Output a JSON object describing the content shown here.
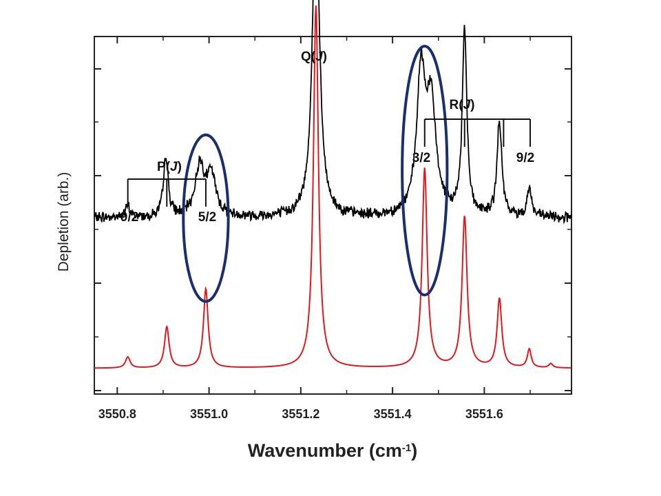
{
  "chart_data": {
    "type": "line",
    "xlabel_main": "Wavenumber (cm",
    "xlabel_sup": "-1",
    "xlabel_close": ")",
    "ylabel": "Depletion (arb.)",
    "xlim": [
      3550.75,
      3551.79
    ],
    "ylim": [
      0,
      1
    ],
    "x_ticks": [
      "3550.8",
      "3551.0",
      "3551.2",
      "3551.4",
      "3551.6"
    ],
    "grid": false,
    "colors": {
      "experiment": "#000000",
      "simulation": "#e0181b",
      "ellipse": "#1a2f6b"
    },
    "series": [
      {
        "key": "experiment",
        "baseline": 0.493,
        "noise": 0.012,
        "peaks": [
          {
            "x": 3550.823,
            "a": 0.03,
            "w": 0.006
          },
          {
            "x": 3550.906,
            "a": 0.17,
            "w": 0.006
          },
          {
            "x": 3550.98,
            "a": 0.14,
            "w": 0.012
          },
          {
            "x": 3551.005,
            "a": 0.11,
            "w": 0.012
          },
          {
            "x": 3551.233,
            "a": 0.908,
            "w": 0.009
          },
          {
            "x": 3551.462,
            "a": 0.38,
            "w": 0.011
          },
          {
            "x": 3551.484,
            "a": 0.3,
            "w": 0.013
          },
          {
            "x": 3551.557,
            "a": 0.52,
            "w": 0.006
          },
          {
            "x": 3551.633,
            "a": 0.27,
            "w": 0.006
          },
          {
            "x": 3551.698,
            "a": 0.08,
            "w": 0.006
          }
        ]
      },
      {
        "key": "simulation",
        "baseline": 0.072,
        "peaks": [
          {
            "x": 3550.823,
            "a": 0.031,
            "w": 0.006
          },
          {
            "x": 3550.908,
            "a": 0.115,
            "w": 0.006
          },
          {
            "x": 3550.993,
            "a": 0.222,
            "w": 0.006
          },
          {
            "x": 3551.233,
            "a": 1.014,
            "w": 0.0065
          },
          {
            "x": 3551.47,
            "a": 0.558,
            "w": 0.0065
          },
          {
            "x": 3551.557,
            "a": 0.423,
            "w": 0.0065
          },
          {
            "x": 3551.633,
            "a": 0.193,
            "w": 0.006
          },
          {
            "x": 3551.698,
            "a": 0.052,
            "w": 0.005
          },
          {
            "x": 3551.745,
            "a": 0.012,
            "w": 0.005
          }
        ]
      }
    ],
    "annotations": {
      "q_branch": {
        "label": "Q",
        "j": "J",
        "x": 3551.233
      },
      "p_branch": {
        "label": "P",
        "j": "J",
        "ticks": [
          3550.823,
          3550.908,
          3550.993
        ],
        "left_value": "9/2",
        "right_value": "5/2"
      },
      "r_branch": {
        "label": "R",
        "j": "J",
        "ticks": [
          3551.47,
          3551.557,
          3551.642,
          3551.7
        ],
        "left_value": "3/2",
        "right_value": "9/2"
      }
    },
    "highlight_ellipses": [
      {
        "x": 3550.993,
        "y_center": 0.492,
        "x_halfwidth": 0.049,
        "y_halfwidth": 0.233
      },
      {
        "x": 3551.47,
        "y_center": 0.625,
        "x_halfwidth": 0.049,
        "y_halfwidth": 0.348
      }
    ]
  }
}
